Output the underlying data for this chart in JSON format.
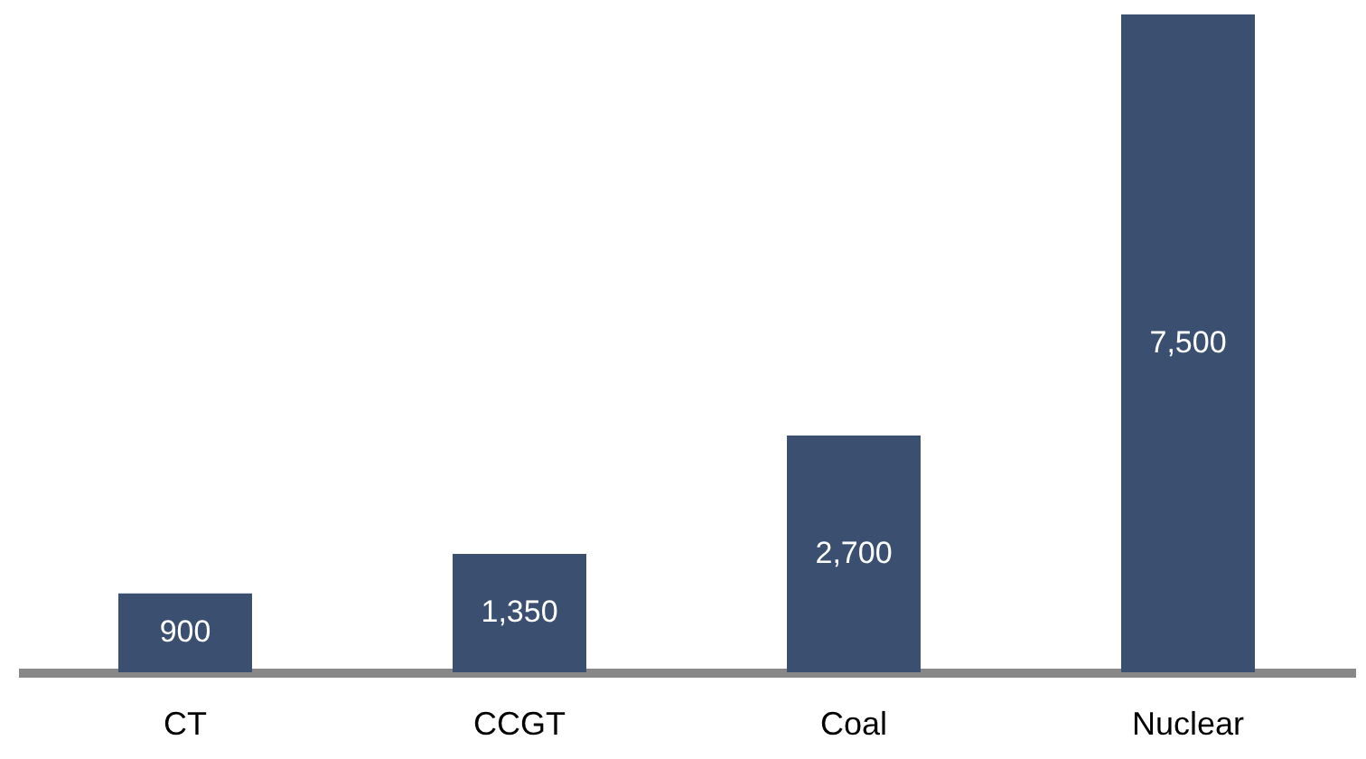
{
  "chart_data": {
    "type": "bar",
    "categories": [
      "CT",
      "CCGT",
      "Coal",
      "Nuclear"
    ],
    "values": [
      900,
      1350,
      2700,
      7500
    ],
    "value_labels": [
      "900",
      "1,350",
      "2,700",
      "7,500"
    ],
    "color": "#3b5070"
  }
}
